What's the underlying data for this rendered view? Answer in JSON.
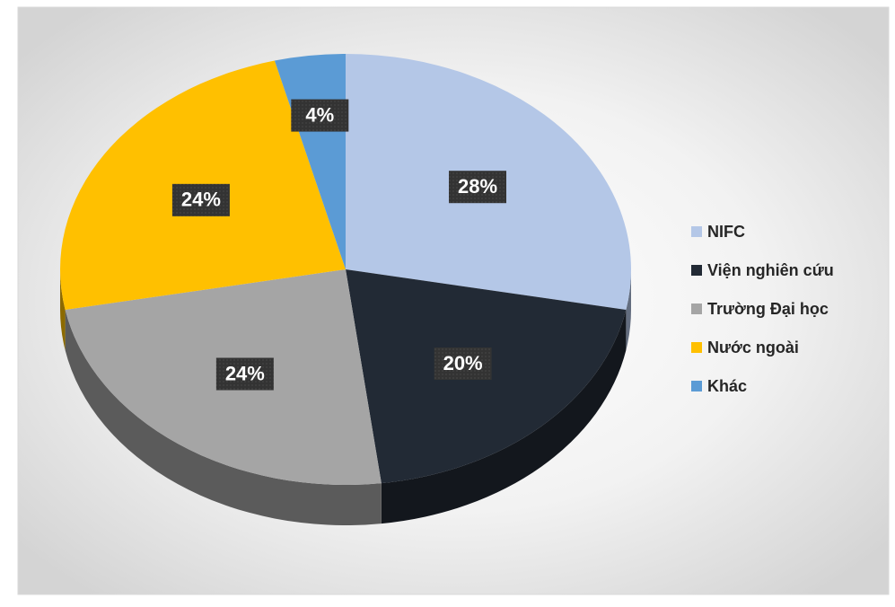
{
  "chart_data": {
    "type": "pie",
    "categories": [
      "NIFC",
      "Viện nghiên cứu",
      "Trường Đại học",
      "Nước ngoài",
      "Khác"
    ],
    "values": [
      28,
      20,
      24,
      24,
      4
    ],
    "value_labels": [
      "28%",
      "20%",
      "24%",
      "24%",
      "4%"
    ],
    "colors": [
      "#b4c7e7",
      "#222a35",
      "#a5a5a5",
      "#ffc000",
      "#5b9bd5"
    ],
    "legend": "right"
  }
}
